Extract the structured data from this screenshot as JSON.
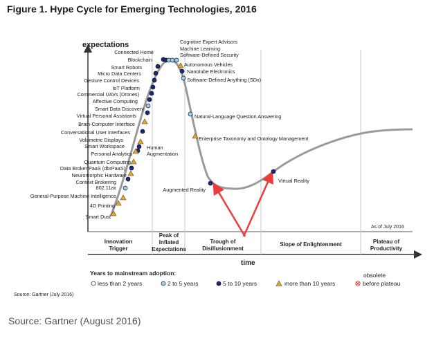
{
  "title": "Figure 1. Hype Cycle for Emerging Technologies, 2016",
  "source_small": "Source: Gartner (July 2016)",
  "source_big": "Source: Gartner (August 2016)",
  "axis": {
    "y_label": "expectations",
    "x_label": "time",
    "as_of": "As of July 2016"
  },
  "phases": [
    {
      "id": "trigger",
      "lines": [
        "Innovation",
        "Trigger"
      ]
    },
    {
      "id": "peak",
      "lines": [
        "Peak of",
        "Inflated",
        "Expectations"
      ]
    },
    {
      "id": "trough",
      "lines": [
        "Trough of",
        "Disillusionment"
      ]
    },
    {
      "id": "slope",
      "lines": [
        "Slope of Enlightenment"
      ]
    },
    {
      "id": "plateau",
      "lines": [
        "Plateau of",
        "Productivity"
      ]
    }
  ],
  "legend": {
    "title": "Years to mainstream adoption:",
    "items": [
      {
        "id": "lt2",
        "label": "less than 2 years",
        "marker": "circle-white"
      },
      {
        "id": "2to5",
        "label": "2 to 5 years",
        "marker": "circle-lightblue"
      },
      {
        "id": "5to10",
        "label": "5 to 10 years",
        "marker": "circle-navy"
      },
      {
        "id": "gt10",
        "label": "more than 10 years",
        "marker": "triangle-orange"
      },
      {
        "id": "obsolete",
        "label_top": "obsolete",
        "label": "before plateau",
        "marker": "x-circle-red"
      }
    ]
  },
  "colors": {
    "navy": "#1b2a7e",
    "lightblue": "#9bd0ef",
    "orange": "#f0a51e",
    "curve": "#9a9a9a",
    "arrow": "#ef3b3b",
    "red": "#d33"
  },
  "technologies": [
    {
      "name": "Smart Dust",
      "adoption": "more than 10 years"
    },
    {
      "name": "4D Printing",
      "adoption": "more than 10 years"
    },
    {
      "name": "General-Purpose Machine Intelligence",
      "adoption": "more than 10 years"
    },
    {
      "name": "802.11ax",
      "adoption": "2 to 5 years"
    },
    {
      "name": "Context Brokering",
      "adoption": "5 to 10 years"
    },
    {
      "name": "Neuromorphic Hardware",
      "adoption": "more than 10 years"
    },
    {
      "name": "Data Broker PaaS (dbrPaaS)",
      "adoption": "5 to 10 years"
    },
    {
      "name": "Quantum Computing",
      "adoption": "more than 10 years"
    },
    {
      "name": "Personal Analytics",
      "adoption": "5 to 10 years"
    },
    {
      "name": "Smart Workspace",
      "adoption": "5 to 10 years"
    },
    {
      "name": "Volumetric Displays",
      "adoption": "more than 10 years"
    },
    {
      "name": "Conversational User Interfaces",
      "adoption": "5 to 10 years"
    },
    {
      "name": "Brain-Computer Interface",
      "adoption": "more than 10 years"
    },
    {
      "name": "Virtual Personal Assistants",
      "adoption": "5 to 10 years"
    },
    {
      "name": "Smart Data Discovery",
      "adoption": "2 to 5 years"
    },
    {
      "name": "Affective Computing",
      "adoption": "5 to 10 years"
    },
    {
      "name": "Commercial UAVs (Drones)",
      "adoption": "5 to 10 years"
    },
    {
      "name": "IoT Platform",
      "adoption": "5 to 10 years"
    },
    {
      "name": "Gesture Control Devices",
      "adoption": "5 to 10 years"
    },
    {
      "name": "Micro Data Centers",
      "adoption": "5 to 10 years"
    },
    {
      "name": "Smart Robots",
      "adoption": "5 to 10 years"
    },
    {
      "name": "Connected Home",
      "adoption": "5 to 10 years"
    },
    {
      "name": "Blockchain",
      "adoption": "5 to 10 years"
    },
    {
      "name": "Cognitive Expert Advisors",
      "adoption": "2 to 5 years"
    },
    {
      "name": "Machine Learning",
      "adoption": "2 to 5 years"
    },
    {
      "name": "Software-Defined Security",
      "adoption": "2 to 5 years"
    },
    {
      "name": "Autonomous Vehicles",
      "adoption": "more than 10 years"
    },
    {
      "name": "Nanotube Electronics",
      "adoption": "5 to 10 years"
    },
    {
      "name": "Software-Defined Anything (SDx)",
      "adoption": "2 to 5 years"
    },
    {
      "name": "Natural-Language Question Answering",
      "adoption": "2 to 5 years"
    },
    {
      "name": "Enterprise Taxonomy and Ontology Management",
      "adoption": "more than 10 years"
    },
    {
      "name": "Human Augmentation",
      "adoption": "more than 10 years"
    },
    {
      "name": "Augmented Reality",
      "adoption": "5 to 10 years"
    },
    {
      "name": "Virtual Reality",
      "adoption": "5 to 10 years"
    }
  ]
}
